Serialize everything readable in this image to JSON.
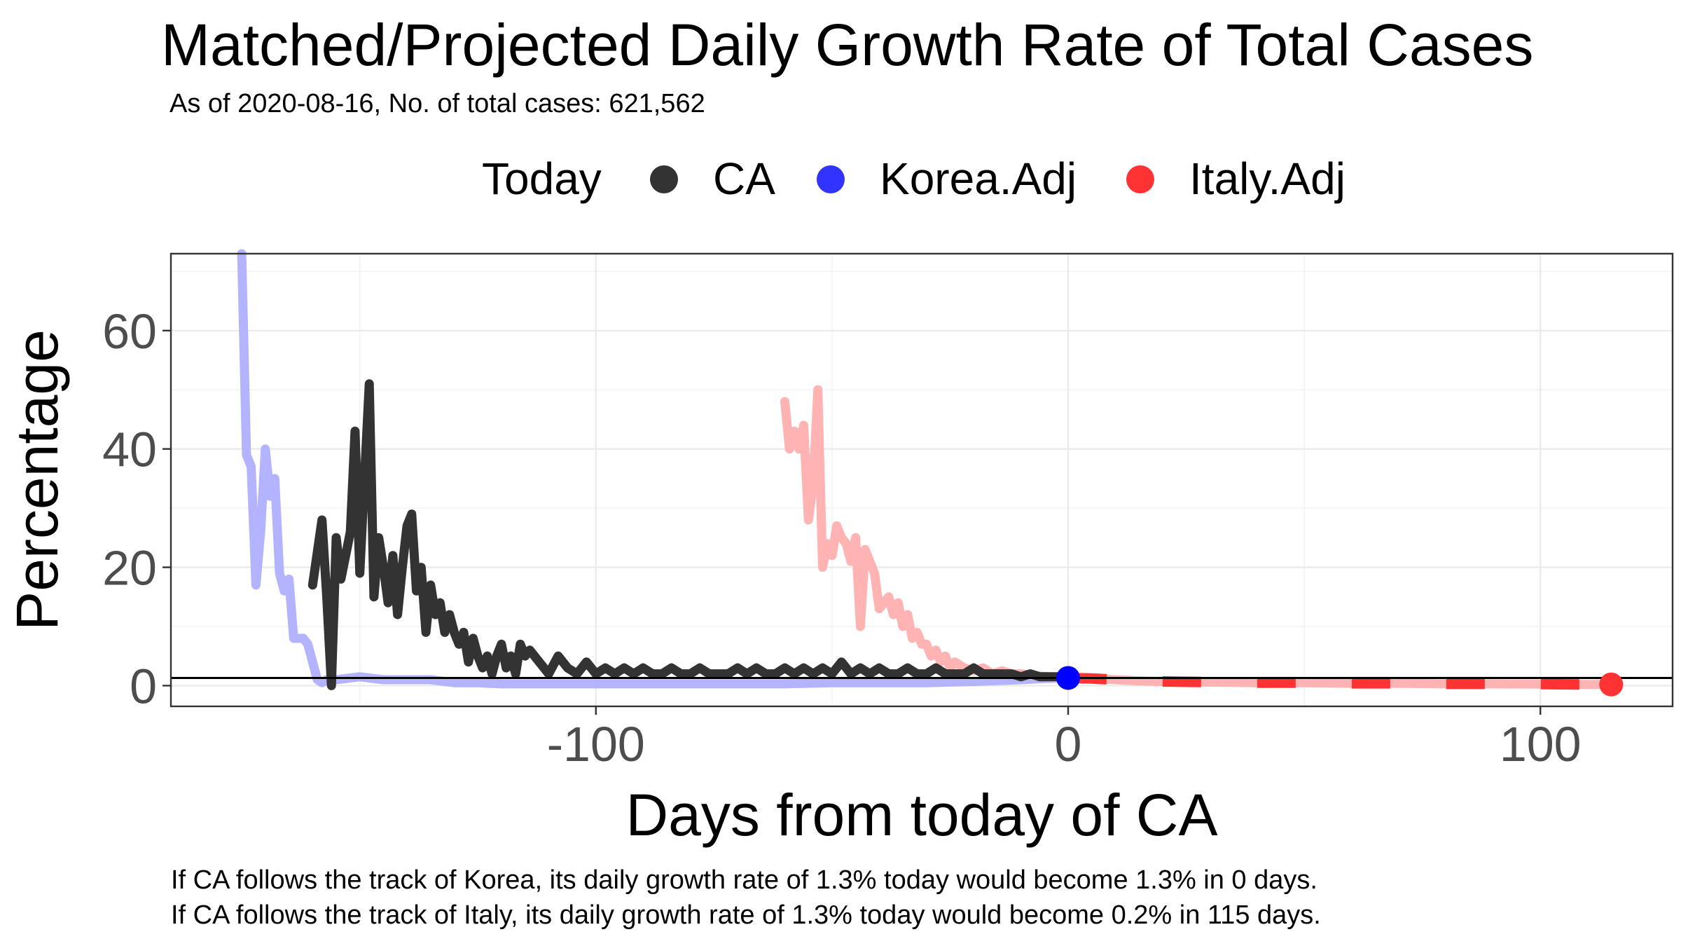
{
  "title": "Matched/Projected Daily Growth Rate of Total Cases",
  "subtitle": "As of 2020-08-16, No. of total cases: 621,562",
  "captions": [
    "If CA follows the track of Korea, its daily growth rate of 1.3% today would become 1.3% in 0 days.",
    "If CA follows the track of Italy, its daily growth rate of 1.3% today would become 0.2% in 115 days."
  ],
  "chart_data": {
    "type": "line",
    "title": "Matched/Projected Daily Growth Rate of Total Cases",
    "xlabel": "Days from today of CA",
    "ylabel": "Percentage",
    "xlim": [
      -190,
      128
    ],
    "ylim": [
      -3.5,
      73
    ],
    "x_ticks": [
      -100,
      0,
      100
    ],
    "x_tick_labels": [
      "-100",
      "0",
      "100"
    ],
    "x_minor_ticks": [
      -150,
      -50,
      50
    ],
    "y_ticks": [
      0,
      20,
      40,
      60
    ],
    "y_tick_labels": [
      "0",
      "20",
      "40",
      "60"
    ],
    "y_minor_ticks": [
      10,
      30,
      50,
      70
    ],
    "grid": true,
    "legend": {
      "title": "Today",
      "position": "top",
      "labels": [
        "CA",
        "Korea.Adj",
        "Italy.Adj"
      ]
    },
    "colors": {
      "CA": "#333333",
      "Korea": "#3333ff",
      "Italy": "#ff3333",
      "Korea_faded": "#b3b3ff",
      "Italy_faded": "#ffb3b3"
    },
    "hline": 1.3,
    "today_marker": {
      "x": 0,
      "y": 1.3
    },
    "end_marker": {
      "x": 115,
      "y": 0.2
    },
    "series": [
      {
        "name": "CA",
        "x": [
          -160,
          -158,
          -157,
          -156,
          -155,
          -154,
          -153,
          -152,
          -151,
          -150,
          -149,
          -148,
          -147,
          -146,
          -145,
          -144,
          -143,
          -142,
          -141,
          -140,
          -139,
          -138,
          -137,
          -136,
          -135,
          -134,
          -133,
          -132,
          -131,
          -130,
          -129,
          -128,
          -127,
          -126,
          -125,
          -124,
          -123,
          -122,
          -121,
          -120,
          -119,
          -118,
          -117,
          -116,
          -115,
          -114,
          -112,
          -110,
          -108,
          -106,
          -104,
          -102,
          -100,
          -98,
          -96,
          -94,
          -92,
          -90,
          -88,
          -86,
          -84,
          -82,
          -80,
          -78,
          -76,
          -74,
          -72,
          -70,
          -68,
          -66,
          -64,
          -62,
          -60,
          -58,
          -56,
          -54,
          -52,
          -50,
          -48,
          -46,
          -44,
          -42,
          -40,
          -38,
          -36,
          -34,
          -32,
          -30,
          -28,
          -26,
          -24,
          -22,
          -20,
          -18,
          -16,
          -14,
          -12,
          -10,
          -8,
          -6,
          -4,
          -2,
          0
        ],
        "y": [
          17,
          28,
          15,
          0,
          25,
          18,
          22,
          26,
          43,
          19,
          35,
          51,
          15,
          25,
          20,
          14,
          22,
          12,
          20,
          27,
          29,
          16,
          20,
          9,
          17,
          12,
          14,
          9,
          12,
          9,
          7,
          9,
          4,
          8,
          5,
          3,
          5,
          2,
          5,
          7,
          3,
          5,
          2,
          7,
          5,
          6,
          4,
          2,
          5,
          3,
          2,
          4,
          2,
          3,
          2,
          3,
          2,
          3,
          2,
          2,
          3,
          2,
          2,
          3,
          2,
          2,
          2,
          3,
          2,
          3,
          2,
          2,
          3,
          2,
          3,
          2,
          3,
          2,
          4,
          2,
          3,
          2,
          3,
          2,
          2,
          3,
          2,
          2,
          3,
          2,
          2,
          2,
          3,
          2,
          2,
          2,
          2,
          1.5,
          2,
          1.5,
          1.5,
          1.5,
          1.3
        ]
      },
      {
        "name": "Korea.Adj",
        "x": [
          -175,
          -174,
          -173,
          -172,
          -171,
          -170,
          -169,
          -168,
          -167,
          -166,
          -165,
          -164,
          -163,
          -162,
          -161,
          -160,
          -159,
          -158,
          -157,
          -156,
          -155,
          -150,
          -145,
          -140,
          -135,
          -130,
          -125,
          -120,
          -110,
          -100,
          -90,
          -80,
          -70,
          -60,
          -50,
          -40,
          -30,
          -20,
          -10,
          -5,
          0
        ],
        "y": [
          73,
          39,
          37,
          17,
          26,
          40,
          32,
          35,
          19,
          16,
          18,
          8,
          8,
          8,
          7,
          4,
          1,
          0.5,
          1,
          1,
          1,
          1.5,
          1,
          1,
          1,
          0.5,
          0.5,
          0.3,
          0.3,
          0.3,
          0.3,
          0.3,
          0.3,
          0.3,
          0.5,
          0.5,
          0.5,
          0.7,
          1,
          1.2,
          1.3
        ]
      },
      {
        "name": "Italy (matched)",
        "x": [
          -60,
          -59,
          -58,
          -57,
          -56,
          -55,
          -54,
          -53,
          -52,
          -51,
          -50,
          -49,
          -48,
          -47,
          -46,
          -45,
          -44,
          -43,
          -42,
          -41,
          -40,
          -39,
          -38,
          -37,
          -36,
          -35,
          -34,
          -33,
          -32,
          -31,
          -30,
          -29,
          -28,
          -27,
          -26,
          -25,
          -24,
          -22,
          -20,
          -18,
          -16,
          -14,
          -12,
          -10,
          -8,
          -6,
          -4,
          -2,
          0
        ],
        "y": [
          48,
          40,
          43,
          40,
          44,
          28,
          34,
          50,
          20,
          24,
          22,
          27,
          25,
          24,
          21,
          25,
          10,
          23,
          21,
          19,
          13,
          14,
          15,
          12,
          14,
          10,
          12,
          8,
          9,
          7,
          7,
          5,
          6,
          4,
          5,
          3,
          4,
          3,
          2.5,
          3,
          2,
          2.5,
          2,
          2,
          1.8,
          1.6,
          1.5,
          1.4,
          1.3
        ]
      },
      {
        "name": "Italy.Adj",
        "x": [
          0,
          5,
          10,
          15,
          20,
          30,
          40,
          50,
          60,
          70,
          80,
          90,
          100,
          110,
          115
        ],
        "y": [
          1.3,
          1.2,
          1.0,
          0.8,
          0.7,
          0.6,
          0.5,
          0.5,
          0.4,
          0.4,
          0.3,
          0.3,
          0.25,
          0.2,
          0.2
        ]
      }
    ]
  }
}
